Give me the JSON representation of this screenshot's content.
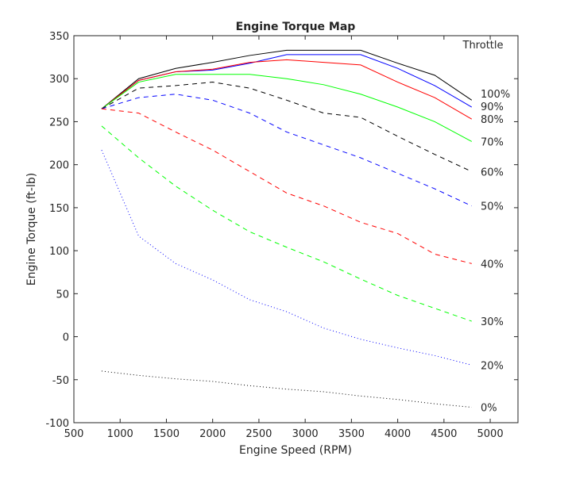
{
  "chart_data": {
    "type": "line",
    "title": "Engine Torque Map",
    "xlabel": "Engine Speed (RPM)",
    "ylabel": "Engine Torque (ft-lb)",
    "xlim": [
      500,
      5300
    ],
    "ylim": [
      -100,
      350
    ],
    "xticks": [
      500,
      1000,
      1500,
      2000,
      2500,
      3000,
      3500,
      4000,
      4500,
      5000
    ],
    "yticks": [
      -100,
      -50,
      0,
      50,
      100,
      150,
      200,
      250,
      300,
      350
    ],
    "grid": false,
    "legend_title": "Throttle",
    "x": [
      800,
      1200,
      1600,
      2000,
      2400,
      2800,
      3200,
      3600,
      4000,
      4400,
      4800
    ],
    "series": [
      {
        "name": "100%",
        "color": "#000000",
        "style": "solid",
        "values": [
          265,
          300,
          312,
          319,
          327,
          333,
          333,
          333,
          318,
          304,
          275
        ]
      },
      {
        "name": "90%",
        "color": "#0000ff",
        "style": "solid",
        "values": [
          265,
          298,
          308,
          310,
          318,
          328,
          328,
          328,
          312,
          292,
          267
        ]
      },
      {
        "name": "80%",
        "color": "#ff0000",
        "style": "solid",
        "values": [
          265,
          298,
          308,
          311,
          319,
          322,
          319,
          316,
          296,
          278,
          253
        ]
      },
      {
        "name": "70%",
        "color": "#00ff00",
        "style": "solid",
        "values": [
          265,
          296,
          305,
          305,
          305,
          300,
          293,
          282,
          267,
          250,
          227
        ]
      },
      {
        "name": "60%",
        "color": "#000000",
        "style": "dashed",
        "values": [
          265,
          289,
          292,
          296,
          289,
          275,
          260,
          255,
          233,
          212,
          192
        ]
      },
      {
        "name": "50%",
        "color": "#0000ff",
        "style": "dashed",
        "values": [
          265,
          278,
          282,
          275,
          260,
          238,
          223,
          208,
          190,
          172,
          152
        ]
      },
      {
        "name": "40%",
        "color": "#ff0000",
        "style": "dashed",
        "values": [
          265,
          260,
          238,
          217,
          192,
          167,
          152,
          133,
          120,
          96,
          85
        ]
      },
      {
        "name": "30%",
        "color": "#00ff00",
        "style": "dashed",
        "values": [
          245,
          208,
          175,
          147,
          122,
          104,
          87,
          67,
          48,
          33,
          18
        ]
      },
      {
        "name": "20%",
        "color": "#0000ff",
        "style": "dotted",
        "values": [
          217,
          117,
          85,
          66,
          43,
          29,
          10,
          -3,
          -13,
          -22,
          -33
        ]
      },
      {
        "name": "0%",
        "color": "#000000",
        "style": "dotted",
        "values": [
          -40,
          -45,
          -49,
          -52,
          -57,
          -61,
          -64,
          -69,
          -73,
          -78,
          -82
        ]
      }
    ]
  }
}
